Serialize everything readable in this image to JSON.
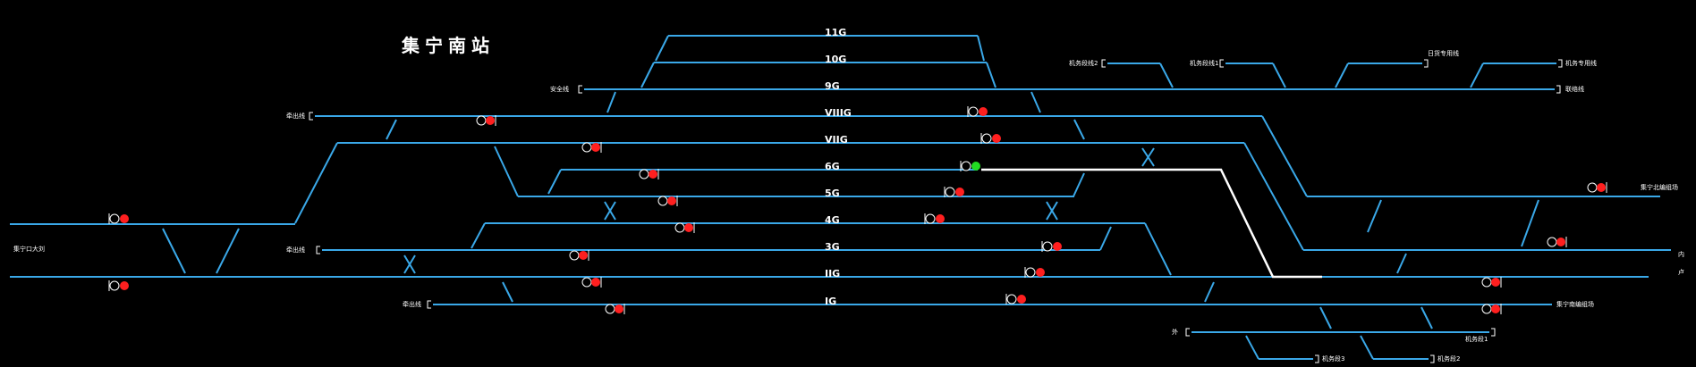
{
  "station": {
    "title": "集宁南站"
  },
  "colors": {
    "track": "#3aa8e8",
    "route": "#ffffff",
    "signal_red": "#ff1f1f",
    "signal_green": "#22dd22",
    "background": "#000000"
  },
  "tracks": [
    {
      "id": "t11",
      "label": "11G"
    },
    {
      "id": "t10",
      "label": "10G"
    },
    {
      "id": "t9",
      "label": "9G"
    },
    {
      "id": "t8",
      "label": "VIIIG"
    },
    {
      "id": "t7",
      "label": "VIIG"
    },
    {
      "id": "t6",
      "label": "6G"
    },
    {
      "id": "t5",
      "label": "5G"
    },
    {
      "id": "t4",
      "label": "4G"
    },
    {
      "id": "t3",
      "label": "3G"
    },
    {
      "id": "t2",
      "label": "IIG"
    },
    {
      "id": "t1",
      "label": "IG"
    }
  ],
  "line_labels": {
    "safety": "安全线",
    "stub_viii": "牵出线",
    "stub_3": "牵出线",
    "stub_1": "牵出线",
    "left_main": "集宁口大刘",
    "machine2": "机务段线2",
    "machine1": "机务段线1",
    "special": "日货专用线",
    "depot_special": "机务专用线",
    "connect": "联络线",
    "right_top": "集宁北编组场",
    "right_mid": "内",
    "right_low": "卢",
    "right_bottom": "集宁南编组场",
    "bottom_left": "外",
    "dep1": "机务段1",
    "dep3": "机务段3",
    "dep2": "机务段2"
  },
  "signals": [
    {
      "id": "s_left_up",
      "aspect": "red"
    },
    {
      "id": "s_left_dn",
      "aspect": "red"
    },
    {
      "id": "s_viii_w",
      "aspect": "red"
    },
    {
      "id": "s_vii_w",
      "aspect": "red"
    },
    {
      "id": "s_6_w",
      "aspect": "red"
    },
    {
      "id": "s_5_w",
      "aspect": "red"
    },
    {
      "id": "s_4_w",
      "aspect": "red"
    },
    {
      "id": "s_3_w",
      "aspect": "red"
    },
    {
      "id": "s_ii_w",
      "aspect": "red"
    },
    {
      "id": "s_i_w",
      "aspect": "red"
    },
    {
      "id": "s_viii_e",
      "aspect": "red"
    },
    {
      "id": "s_vii_e",
      "aspect": "red"
    },
    {
      "id": "s_6_e",
      "aspect": "green"
    },
    {
      "id": "s_5_e",
      "aspect": "red"
    },
    {
      "id": "s_4_e",
      "aspect": "red"
    },
    {
      "id": "s_3_e",
      "aspect": "red"
    },
    {
      "id": "s_ii_e",
      "aspect": "red"
    },
    {
      "id": "s_i_e",
      "aspect": "red"
    },
    {
      "id": "s_r_top",
      "aspect": "red"
    },
    {
      "id": "s_r_mid",
      "aspect": "red"
    },
    {
      "id": "s_r_ii",
      "aspect": "red"
    },
    {
      "id": "s_r_i",
      "aspect": "red"
    }
  ],
  "active_route": {
    "from": "6G",
    "to": "IIG"
  }
}
